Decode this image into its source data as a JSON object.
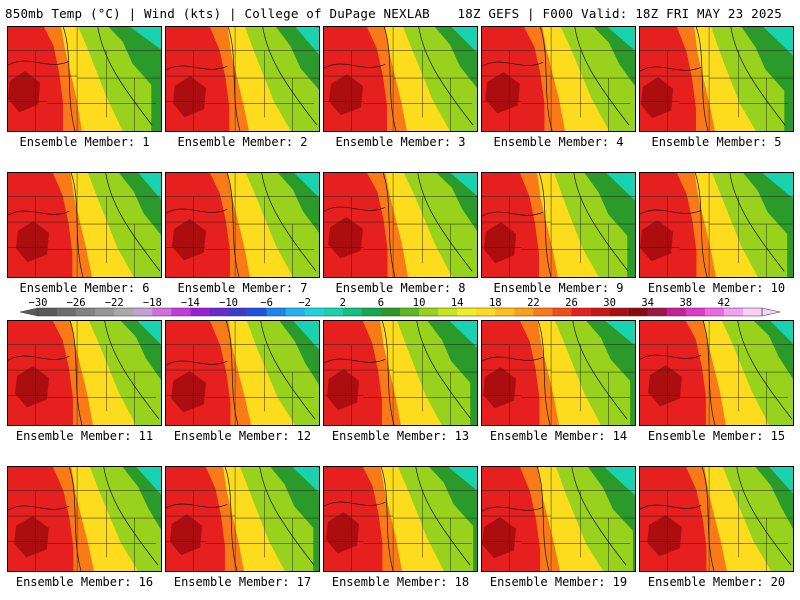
{
  "header": {
    "left": "850mb Temp (°C) | Wind (kts) | College of DuPage NEXLAB",
    "right": "18Z GEFS | F000 Valid: 18Z FRI MAY 23 2025"
  },
  "panels": [
    {
      "label": "Ensemble Member: 1"
    },
    {
      "label": "Ensemble Member: 2"
    },
    {
      "label": "Ensemble Member: 3"
    },
    {
      "label": "Ensemble Member: 4"
    },
    {
      "label": "Ensemble Member: 5"
    },
    {
      "label": "Ensemble Member: 6"
    },
    {
      "label": "Ensemble Member: 7"
    },
    {
      "label": "Ensemble Member: 8"
    },
    {
      "label": "Ensemble Member: 9"
    },
    {
      "label": "Ensemble Member: 10"
    },
    {
      "label": "Ensemble Member: 11"
    },
    {
      "label": "Ensemble Member: 12"
    },
    {
      "label": "Ensemble Member: 13"
    },
    {
      "label": "Ensemble Member: 14"
    },
    {
      "label": "Ensemble Member: 15"
    },
    {
      "label": "Ensemble Member: 16"
    },
    {
      "label": "Ensemble Member: 17"
    },
    {
      "label": "Ensemble Member: 18"
    },
    {
      "label": "Ensemble Member: 19"
    },
    {
      "label": "Ensemble Member: 20"
    }
  ],
  "colorbar": {
    "tick_labels": [
      "-30",
      "-26",
      "-22",
      "-18",
      "-14",
      "-10",
      "-6",
      "-2",
      "2",
      "6",
      "10",
      "14",
      "18",
      "22",
      "26",
      "30",
      "34",
      "38",
      "42"
    ],
    "colors": [
      "#5a5a5a",
      "#6e6e6e",
      "#828282",
      "#969696",
      "#aaaaaa",
      "#c3a0d6",
      "#d070e0",
      "#c23ae0",
      "#9a20d8",
      "#6a28d0",
      "#3c3ccf",
      "#2050e0",
      "#1a86f0",
      "#22b4f2",
      "#20d2de",
      "#18d2b0",
      "#14c07e",
      "#14a850",
      "#2a9a2a",
      "#5eb822",
      "#98d21c",
      "#c8e41a",
      "#f0f020",
      "#fcdc1c",
      "#fcc018",
      "#fca018",
      "#fa7a18",
      "#f24e1a",
      "#e6201e",
      "#cc1414",
      "#ac0e10",
      "#8c0a0e",
      "#a01448",
      "#c81e96",
      "#e038c8",
      "#ee68e6",
      "#f4a0f0",
      "#f8d0f8"
    ]
  },
  "colors": {
    "extreme": "#ac0e10",
    "hot": "#e6201e",
    "warm": "#fa7a18",
    "mild": "#fcdc1c",
    "cool": "#98d21c",
    "green": "#2a9a2a",
    "cold": "#18d2b0",
    "coldest": "#22b4f2"
  }
}
